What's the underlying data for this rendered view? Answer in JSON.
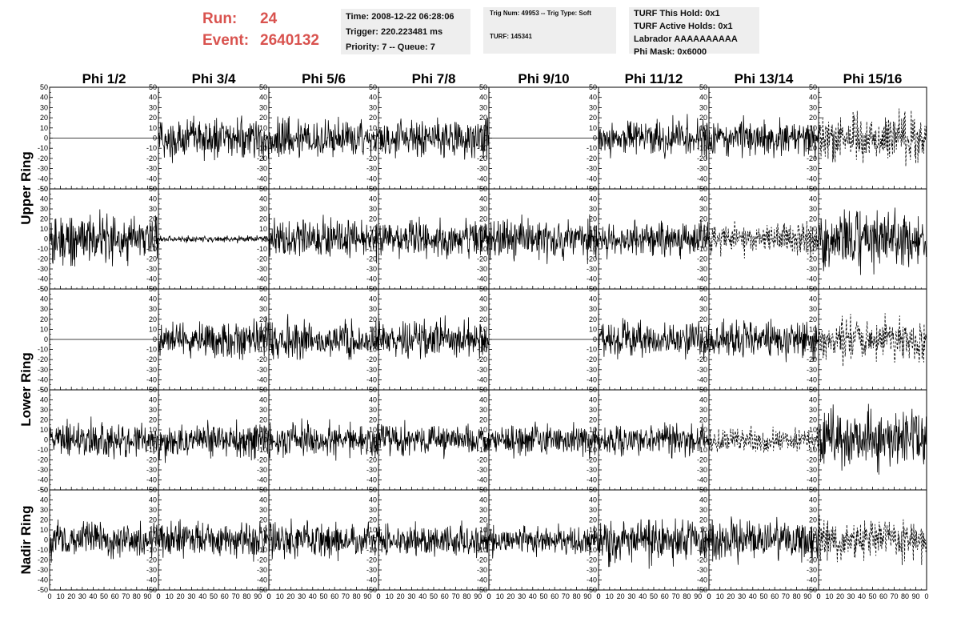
{
  "header": {
    "run_label": "Run:",
    "run_value": "24",
    "event_label": "Event:",
    "event_value": "2640132",
    "time_info": [
      "Time: 2008-12-22 06:28:06",
      "Trigger: 220.223481 ms",
      "Priority: 7 -- Queue: 7"
    ],
    "trig_info": [
      "Trig Num: 49953 -- Trig Type: Soft",
      "TURF: 145341"
    ],
    "turf_info": [
      "TURF This Hold: 0x1",
      "TURF Active Holds: 0x1",
      "Labrador AAAAAAAAAA",
      "Phi Mask: 0x6000"
    ]
  },
  "chart_data": {
    "type": "line",
    "title": "",
    "columns": [
      "Phi 1/2",
      "Phi 3/4",
      "Phi 5/6",
      "Phi 7/8",
      "Phi 9/10",
      "Phi 11/12",
      "Phi 13/14",
      "Phi 15/16"
    ],
    "rings": [
      "Upper Ring",
      "Lower Ring",
      "Nadir Ring"
    ],
    "rows_per_ring": [
      2,
      2,
      1
    ],
    "xlim": [
      0,
      100
    ],
    "ylim": [
      -50,
      50
    ],
    "y_ticks": [
      "50",
      "40",
      "30",
      "20",
      "10",
      "0",
      "-10",
      "-20",
      "-30",
      "-40",
      "-50"
    ],
    "x_ticks": [
      "0",
      "10",
      "20",
      "30",
      "40",
      "50",
      "60",
      "70",
      "80",
      "90",
      "100"
    ],
    "x_tick_labels_rendered": [
      "0",
      "10",
      "20",
      "30",
      "40",
      "50",
      "60",
      "70",
      "80",
      "90",
      "0"
    ],
    "waveform_amplitude": [
      [
        0,
        18,
        18,
        18,
        0,
        16,
        16,
        20
      ],
      [
        22,
        3,
        18,
        16,
        18,
        16,
        14,
        25
      ],
      [
        0,
        16,
        16,
        16,
        0,
        15,
        18,
        18
      ],
      [
        16,
        16,
        16,
        14,
        14,
        14,
        12,
        25
      ],
      [
        16,
        16,
        16,
        14,
        13,
        20,
        18,
        18
      ]
    ],
    "waveform_style": [
      [
        "solid",
        "solid",
        "solid",
        "solid",
        "solid",
        "solid",
        "solid",
        "dashed"
      ],
      [
        "solid",
        "solid",
        "solid",
        "solid",
        "solid",
        "solid",
        "dashed",
        "solid"
      ],
      [
        "solid",
        "solid",
        "solid",
        "solid",
        "solid",
        "solid",
        "solid",
        "dashed"
      ],
      [
        "solid",
        "solid",
        "solid",
        "solid",
        "solid",
        "solid",
        "dashed",
        "solid"
      ],
      [
        "solid",
        "solid",
        "solid",
        "solid",
        "solid",
        "solid",
        "solid",
        "dashed"
      ]
    ]
  }
}
